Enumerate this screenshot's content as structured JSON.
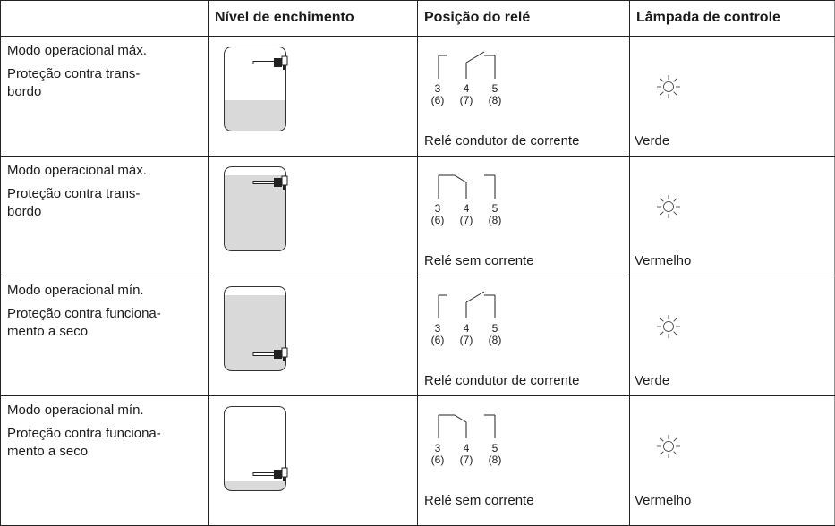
{
  "table": {
    "header": [
      "Nível de enchimento",
      "Posição do relé",
      "Lâmpada de controle"
    ],
    "rows": [
      {
        "mode": "Modo operacional máx.",
        "protection": "Proteção contra trans-\nbordo",
        "terminals": [
          "3",
          "4",
          "5"
        ],
        "alt_terminals": [
          "(6)",
          "(7)",
          "(8)"
        ],
        "relay_state": "Relé condutor de corrente",
        "lamp": "Verde"
      },
      {
        "mode": "Modo operacional máx.",
        "protection": "Proteção contra trans-\nbordo",
        "terminals": [
          "3",
          "4",
          "5"
        ],
        "alt_terminals": [
          "(6)",
          "(7)",
          "(8)"
        ],
        "relay_state": "Relé sem corrente",
        "lamp": "Vermelho"
      },
      {
        "mode": "Modo operacional mín.",
        "protection": "Proteção contra funciona-\nmento a seco",
        "terminals": [
          "3",
          "4",
          "5"
        ],
        "alt_terminals": [
          "(6)",
          "(7)",
          "(8)"
        ],
        "relay_state": "Relé condutor de corrente",
        "lamp": "Verde"
      },
      {
        "mode": "Modo operacional mín.",
        "protection": "Proteção contra funciona-\nmento a seco",
        "terminals": [
          "3",
          "4",
          "5"
        ],
        "alt_terminals": [
          "(6)",
          "(7)",
          "(8)"
        ],
        "relay_state": "Relé sem corrente",
        "lamp": "Vermelho"
      }
    ]
  }
}
